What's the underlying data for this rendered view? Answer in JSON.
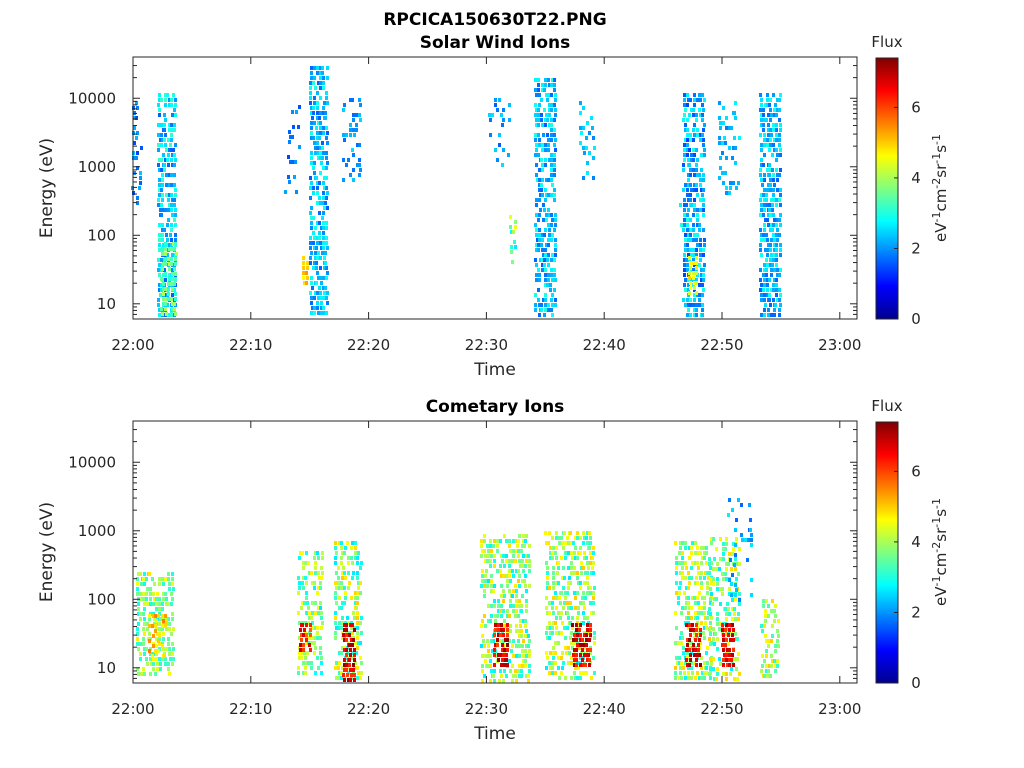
{
  "figure_title": "RPCICA150630T22.PNG",
  "chart_data": [
    {
      "type": "heatmap",
      "title": "Solar Wind Ions",
      "xlabel": "Time",
      "ylabel": "Energy (eV)",
      "x_ticks": [
        "22:00",
        "22:10",
        "22:20",
        "22:30",
        "22:40",
        "22:50",
        "23:00"
      ],
      "x_range_minutes": [
        0,
        60
      ],
      "y_scale": "log",
      "y_ticks": [
        "10",
        "100",
        "1000",
        "10000"
      ],
      "y_range": [
        6,
        40000
      ],
      "colorbar": {
        "title": "Flux",
        "label": "eV-1cm-2sr-1s-1",
        "ticks": [
          "0",
          "2",
          "4",
          "6"
        ],
        "range": [
          0,
          7.4
        ],
        "colormap": "jet"
      },
      "clusters": [
        {
          "t": 0.3,
          "emin": 300,
          "emax": 9000,
          "fmin": 1.4,
          "fmax": 2.4,
          "density": 0.35,
          "width": 0.7
        },
        {
          "t": 2.8,
          "emin": 7,
          "emax": 12000,
          "fmin": 1.6,
          "fmax": 3.2,
          "density": 0.75,
          "width": 1.4
        },
        {
          "t": 3.0,
          "emin": 7,
          "emax": 80,
          "fmin": 3.0,
          "fmax": 4.2,
          "density": 0.8,
          "width": 1.2
        },
        {
          "t": 13.5,
          "emin": 400,
          "emax": 8000,
          "fmin": 1.4,
          "fmax": 2.2,
          "density": 0.2,
          "width": 1.2
        },
        {
          "t": 14.6,
          "emin": 20,
          "emax": 50,
          "fmin": 4.6,
          "fmax": 5.4,
          "density": 0.9,
          "width": 0.4
        },
        {
          "t": 15.7,
          "emin": 7,
          "emax": 30000,
          "fmin": 1.6,
          "fmax": 3.0,
          "density": 0.7,
          "width": 1.4
        },
        {
          "t": 18.5,
          "emin": 500,
          "emax": 10000,
          "fmin": 1.6,
          "fmax": 2.6,
          "density": 0.35,
          "width": 1.4
        },
        {
          "t": 31.0,
          "emin": 1000,
          "emax": 10000,
          "fmin": 1.6,
          "fmax": 2.6,
          "density": 0.25,
          "width": 1.6
        },
        {
          "t": 32.2,
          "emin": 40,
          "emax": 200,
          "fmin": 2.6,
          "fmax": 4.6,
          "density": 0.6,
          "width": 0.4
        },
        {
          "t": 35.0,
          "emin": 7,
          "emax": 20000,
          "fmin": 1.6,
          "fmax": 3.0,
          "density": 0.7,
          "width": 1.8
        },
        {
          "t": 38.5,
          "emin": 600,
          "emax": 9000,
          "fmin": 1.8,
          "fmax": 2.8,
          "density": 0.3,
          "width": 1.2
        },
        {
          "t": 46.8,
          "emin": 80,
          "emax": 300,
          "fmin": 2.4,
          "fmax": 3.2,
          "density": 0.4,
          "width": 0.8
        },
        {
          "t": 47.5,
          "emin": 7,
          "emax": 12000,
          "fmin": 1.4,
          "fmax": 3.0,
          "density": 0.75,
          "width": 1.6
        },
        {
          "t": 47.5,
          "emin": 15,
          "emax": 50,
          "fmin": 4.2,
          "fmax": 5.0,
          "density": 0.85,
          "width": 0.6
        },
        {
          "t": 50.5,
          "emin": 400,
          "emax": 9000,
          "fmin": 1.8,
          "fmax": 2.8,
          "density": 0.3,
          "width": 1.6
        },
        {
          "t": 54.0,
          "emin": 7,
          "emax": 12000,
          "fmin": 1.6,
          "fmax": 3.0,
          "density": 0.75,
          "width": 1.6
        }
      ]
    },
    {
      "type": "heatmap",
      "title": "Cometary Ions",
      "xlabel": "Time",
      "ylabel": "Energy (eV)",
      "x_ticks": [
        "22:00",
        "22:10",
        "22:20",
        "22:30",
        "22:40",
        "22:50",
        "23:00"
      ],
      "x_range_minutes": [
        0,
        60
      ],
      "y_scale": "log",
      "y_ticks": [
        "10",
        "100",
        "1000",
        "10000"
      ],
      "y_range": [
        6,
        40000
      ],
      "colorbar": {
        "title": "Flux",
        "label": "eV-1cm-2sr-1s-1",
        "ticks": [
          "0",
          "2",
          "4",
          "6"
        ],
        "range": [
          0,
          7.4
        ],
        "colormap": "jet"
      },
      "clusters": [
        {
          "t": 1.8,
          "emin": 8,
          "emax": 250,
          "fmin": 2.8,
          "fmax": 4.8,
          "density": 0.6,
          "width": 3.0
        },
        {
          "t": 2.0,
          "emin": 15,
          "emax": 60,
          "fmin": 4.4,
          "fmax": 5.6,
          "density": 0.55,
          "width": 1.4
        },
        {
          "t": 15.0,
          "emin": 8,
          "emax": 500,
          "fmin": 2.6,
          "fmax": 4.8,
          "density": 0.55,
          "width": 2.0
        },
        {
          "t": 14.5,
          "emin": 18,
          "emax": 45,
          "fmin": 5.6,
          "fmax": 7.0,
          "density": 0.85,
          "width": 0.8
        },
        {
          "t": 18.2,
          "emin": 7,
          "emax": 700,
          "fmin": 2.6,
          "fmax": 5.0,
          "density": 0.6,
          "width": 2.2
        },
        {
          "t": 18.3,
          "emin": 7,
          "emax": 45,
          "fmin": 6.0,
          "fmax": 7.3,
          "density": 0.85,
          "width": 1.0
        },
        {
          "t": 31.5,
          "emin": 6,
          "emax": 900,
          "fmin": 2.6,
          "fmax": 5.0,
          "density": 0.6,
          "width": 4.0
        },
        {
          "t": 31.2,
          "emin": 10,
          "emax": 45,
          "fmin": 6.0,
          "fmax": 7.3,
          "density": 0.8,
          "width": 1.2
        },
        {
          "t": 37.0,
          "emin": 7,
          "emax": 1000,
          "fmin": 2.6,
          "fmax": 5.0,
          "density": 0.6,
          "width": 4.0
        },
        {
          "t": 38.0,
          "emin": 10,
          "emax": 45,
          "fmin": 6.0,
          "fmax": 7.3,
          "density": 0.85,
          "width": 1.4
        },
        {
          "t": 47.5,
          "emin": 7,
          "emax": 700,
          "fmin": 2.6,
          "fmax": 5.0,
          "density": 0.6,
          "width": 3.0
        },
        {
          "t": 47.5,
          "emin": 10,
          "emax": 45,
          "fmin": 6.0,
          "fmax": 7.3,
          "density": 0.85,
          "width": 1.2
        },
        {
          "t": 50.2,
          "emin": 7,
          "emax": 800,
          "fmin": 2.6,
          "fmax": 5.0,
          "density": 0.55,
          "width": 2.6
        },
        {
          "t": 50.5,
          "emin": 10,
          "emax": 45,
          "fmin": 6.0,
          "fmax": 7.3,
          "density": 0.85,
          "width": 1.0
        },
        {
          "t": 54.0,
          "emin": 7,
          "emax": 100,
          "fmin": 3.0,
          "fmax": 5.0,
          "density": 0.55,
          "width": 1.4
        },
        {
          "t": 51.5,
          "emin": 100,
          "emax": 3000,
          "fmin": 1.6,
          "fmax": 2.8,
          "density": 0.2,
          "width": 2.0
        }
      ]
    }
  ]
}
